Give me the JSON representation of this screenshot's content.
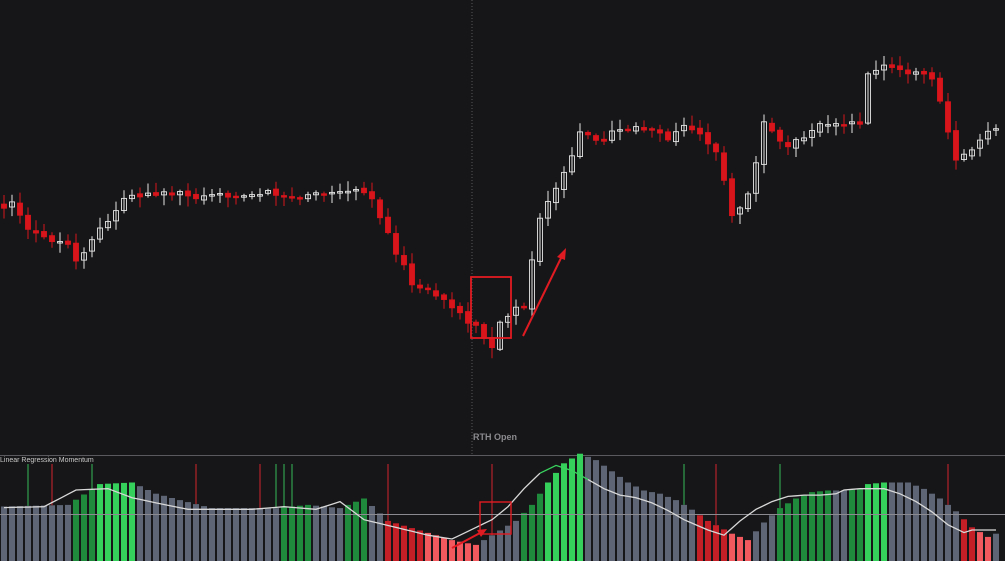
{
  "session_marker": "RTH Open",
  "indicator_title": "Linear Regression Momentum",
  "colors": {
    "background": "#161618",
    "up_candle": "#e6e6e6",
    "down_candle": "#d8151b",
    "hist_green_dark": "#1f8a3c",
    "hist_green_bright": "#35cf5b",
    "hist_red_dark": "#c41f27",
    "hist_red_light": "#f2595e",
    "hist_gray": "#5e6574",
    "momentum_line_white": "#d8d8d8",
    "momentum_line_green": "#39d35e",
    "annotation_red": "#e01b22"
  },
  "chart_data": [
    {
      "type": "candlestick",
      "title": "",
      "xlabel": "",
      "ylabel": "",
      "price_path_knots": [
        [
          0,
          72
        ],
        [
          2,
          72
        ],
        [
          4,
          67
        ],
        [
          7,
          66
        ],
        [
          9,
          65
        ],
        [
          10,
          62
        ],
        [
          13,
          68
        ],
        [
          16,
          73
        ],
        [
          19,
          74
        ],
        [
          22,
          74
        ],
        [
          26,
          73
        ],
        [
          30,
          74
        ],
        [
          34,
          74
        ],
        [
          37,
          73
        ],
        [
          40,
          74
        ],
        [
          45,
          75
        ],
        [
          47,
          73
        ],
        [
          50,
          63
        ],
        [
          52,
          58
        ],
        [
          56,
          55
        ],
        [
          60,
          50
        ],
        [
          62,
          46
        ],
        [
          63,
          52
        ],
        [
          66,
          54
        ],
        [
          68,
          71
        ],
        [
          71,
          78
        ],
        [
          73,
          85
        ],
        [
          75,
          83
        ],
        [
          78,
          86
        ],
        [
          82,
          85
        ],
        [
          84,
          84
        ],
        [
          86,
          86
        ],
        [
          88,
          85
        ],
        [
          90,
          81
        ],
        [
          92,
          70
        ],
        [
          94,
          74
        ],
        [
          96,
          87
        ],
        [
          99,
          82
        ],
        [
          102,
          86
        ],
        [
          106,
          86
        ],
        [
          108,
          87
        ],
        [
          109,
          96
        ],
        [
          111,
          97
        ],
        [
          113,
          96
        ],
        [
          117,
          95
        ],
        [
          118,
          90
        ],
        [
          120,
          80
        ],
        [
          122,
          82
        ],
        [
          124,
          85
        ]
      ],
      "bar_count": 125,
      "annotations": {
        "highlight_box_bars": [
          59,
          64
        ],
        "arrow": "up-right"
      }
    },
    {
      "type": "bar",
      "title": "Linear Regression Momentum",
      "momentum_path_knots": [
        [
          0,
          5
        ],
        [
          8,
          6
        ],
        [
          12,
          19
        ],
        [
          16,
          20
        ],
        [
          19,
          13
        ],
        [
          22,
          9
        ],
        [
          26,
          4
        ],
        [
          30,
          4
        ],
        [
          34,
          4
        ],
        [
          38,
          6
        ],
        [
          42,
          4
        ],
        [
          45,
          10
        ],
        [
          48,
          -4
        ],
        [
          52,
          -10
        ],
        [
          56,
          -16
        ],
        [
          59,
          -19
        ],
        [
          61,
          -13
        ],
        [
          64,
          -4
        ],
        [
          66,
          6
        ],
        [
          68,
          20
        ],
        [
          70,
          32
        ],
        [
          72,
          38
        ],
        [
          74,
          34
        ],
        [
          76,
          27
        ],
        [
          78,
          20
        ],
        [
          80,
          15
        ],
        [
          82,
          13
        ],
        [
          84,
          9
        ],
        [
          86,
          3
        ],
        [
          88,
          -4
        ],
        [
          91,
          -12
        ],
        [
          93,
          -16
        ],
        [
          95,
          -5
        ],
        [
          97,
          4
        ],
        [
          99,
          10
        ],
        [
          101,
          14
        ],
        [
          103,
          15
        ],
        [
          105,
          15
        ],
        [
          107,
          16
        ],
        [
          108,
          19
        ],
        [
          110,
          20
        ],
        [
          113,
          20
        ],
        [
          115,
          16
        ],
        [
          117,
          10
        ],
        [
          119,
          2
        ],
        [
          121,
          -8
        ],
        [
          123,
          -14
        ],
        [
          124,
          -12
        ]
      ],
      "spike_bars": [
        {
          "bar": 3,
          "color": "green"
        },
        {
          "bar": 6,
          "color": "red"
        },
        {
          "bar": 11,
          "color": "green"
        },
        {
          "bar": 24,
          "color": "red"
        },
        {
          "bar": 32,
          "color": "red"
        },
        {
          "bar": 34,
          "color": "green"
        },
        {
          "bar": 35,
          "color": "green"
        },
        {
          "bar": 36,
          "color": "green"
        },
        {
          "bar": 48,
          "color": "red"
        },
        {
          "bar": 61,
          "color": "red"
        },
        {
          "bar": 85,
          "color": "green"
        },
        {
          "bar": 89,
          "color": "red"
        },
        {
          "bar": 97,
          "color": "green"
        },
        {
          "bar": 118,
          "color": "red"
        }
      ],
      "annotations": {
        "highlight_box_bars": [
          60,
          63
        ],
        "arrow": "up-right"
      }
    }
  ]
}
